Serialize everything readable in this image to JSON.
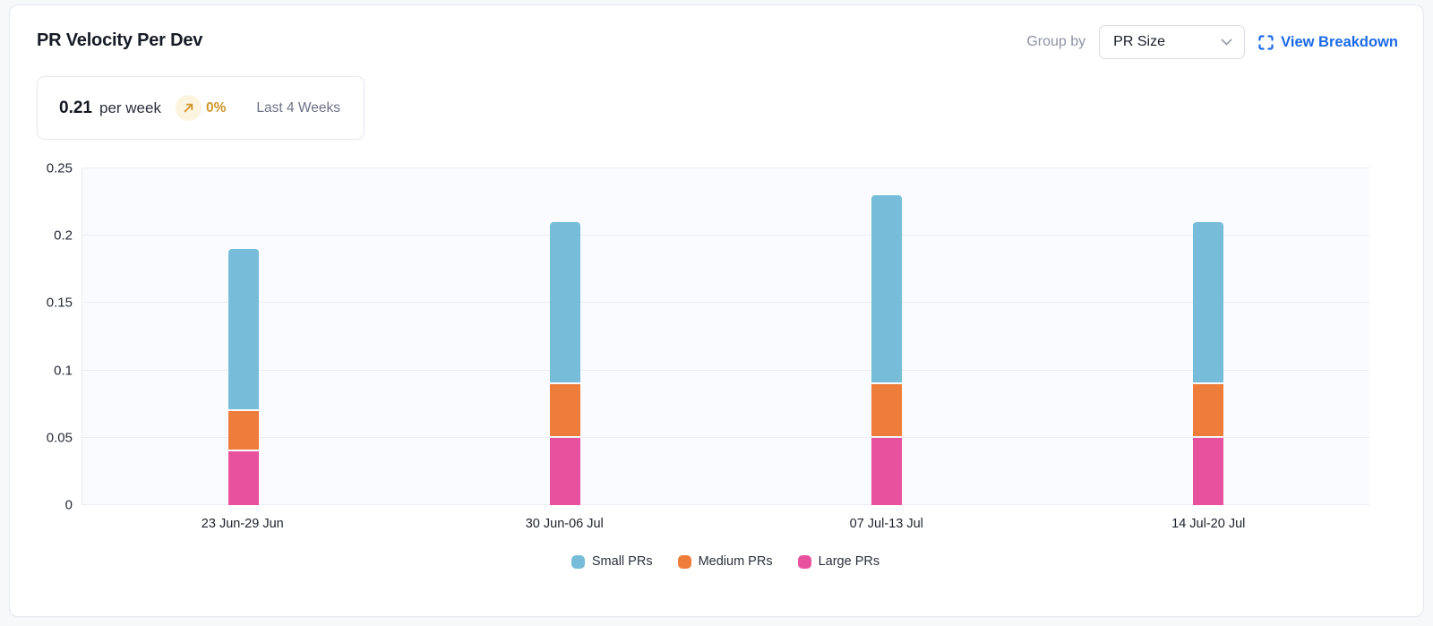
{
  "header": {
    "title": "PR Velocity Per Dev",
    "group_by_label": "Group by",
    "group_by_value": "PR Size",
    "view_breakdown_label": "View Breakdown"
  },
  "stat": {
    "value": "0.21",
    "unit": "per week",
    "trend_icon": "arrow-up-right",
    "trend_value": "0%",
    "period": "Last 4 Weeks"
  },
  "colors": {
    "small_prs": "#77bdd9",
    "medium_prs": "#ee7d3b",
    "large_prs": "#e8519e",
    "trend_amber": "#d0962e",
    "trend_circle_bg": "#fcf4df",
    "link_blue": "#1a6ae8",
    "plot_bg": "#fafbfe",
    "gridline": "#ecedf3"
  },
  "chart_data": {
    "type": "bar",
    "stacked": true,
    "title": "PR Velocity Per Dev",
    "xlabel": "",
    "ylabel": "",
    "categories": [
      "23 Jun-29 Jun",
      "30 Jun-06 Jul",
      "07 Jul-13 Jul",
      "14 Jul-20 Jul"
    ],
    "series": [
      {
        "name": "Small PRs",
        "color": "#77bdd9",
        "values": [
          0.12,
          0.12,
          0.14,
          0.12
        ]
      },
      {
        "name": "Medium PRs",
        "color": "#ee7d3b",
        "values": [
          0.03,
          0.04,
          0.04,
          0.04
        ]
      },
      {
        "name": "Large PRs",
        "color": "#e8519e",
        "values": [
          0.04,
          0.05,
          0.05,
          0.05
        ]
      }
    ],
    "stack_totals": [
      0.19,
      0.21,
      0.23,
      0.21
    ],
    "ylim": [
      0,
      0.25
    ],
    "yticks": [
      0,
      0.05,
      0.1,
      0.15,
      0.2,
      0.25
    ],
    "ytick_labels": [
      "0",
      "0.05",
      "0.1",
      "0.15",
      "0.2",
      "0.25"
    ],
    "grid": true,
    "legend_position": "bottom"
  }
}
